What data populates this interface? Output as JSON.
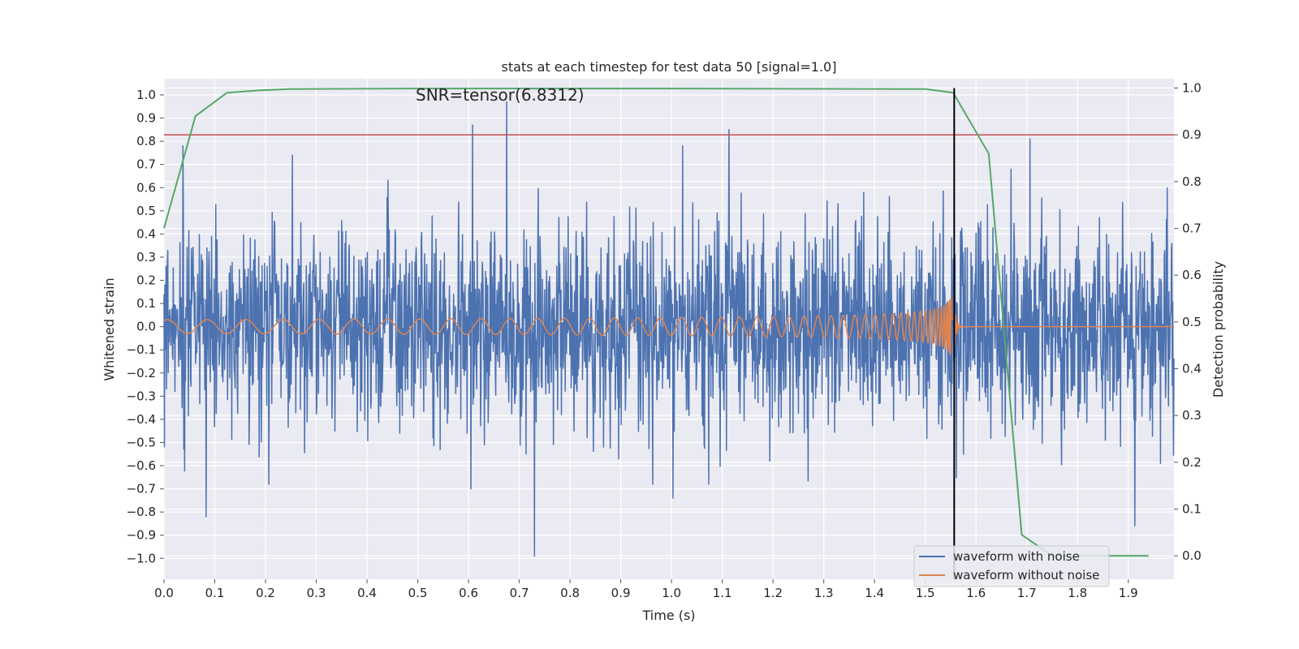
{
  "chart_data": {
    "type": "line",
    "title": "stats at each timestep for test data 50 [signal=1.0]",
    "xlabel": "Time (s)",
    "ylabel": "Whitened strain",
    "y2label": "Detection probability",
    "annotation": "SNR=tensor(6.8312)",
    "xlim": [
      0.0,
      1.99
    ],
    "ylim": [
      -1.09,
      1.07
    ],
    "y2lim": [
      -0.05,
      1.02
    ],
    "grid": true,
    "legend_position": "lower right",
    "x_ticks": [
      "0.0",
      "0.1",
      "0.2",
      "0.3",
      "0.4",
      "0.5",
      "0.6",
      "0.7",
      "0.8",
      "0.9",
      "1.0",
      "1.1",
      "1.2",
      "1.3",
      "1.4",
      "1.5",
      "1.6",
      "1.7",
      "1.8",
      "1.9"
    ],
    "y_ticks": [
      "1.0",
      "0.9",
      "0.8",
      "0.7",
      "0.6",
      "0.5",
      "0.4",
      "0.3",
      "0.2",
      "0.1",
      "0.0",
      "−0.1",
      "−0.2",
      "−0.3",
      "−0.4",
      "−0.5",
      "−0.6",
      "−0.7",
      "−0.8",
      "−0.9",
      "−1.0"
    ],
    "y2_ticks": [
      "1.0",
      "0.9",
      "0.8",
      "0.7",
      "0.6",
      "0.5",
      "0.4",
      "0.3",
      "0.2",
      "0.1",
      "0.0"
    ],
    "series": [
      {
        "name": "waveform with noise",
        "color": "#4c72b0",
        "axis": "left",
        "kind": "noise",
        "x_range": [
          0.0,
          1.99
        ],
        "amplitude_typical": 0.35,
        "peaks": [
          {
            "x": 0.037,
            "y": 0.78
          },
          {
            "x": 0.083,
            "y": -0.82
          },
          {
            "x": 0.253,
            "y": 0.74
          },
          {
            "x": 0.605,
            "y": -0.7
          },
          {
            "x": 0.608,
            "y": 0.87
          },
          {
            "x": 0.675,
            "y": 0.97
          },
          {
            "x": 0.73,
            "y": -0.99
          },
          {
            "x": 1.003,
            "y": -0.74
          },
          {
            "x": 1.022,
            "y": 0.78
          },
          {
            "x": 1.113,
            "y": 0.85
          },
          {
            "x": 1.706,
            "y": 0.81
          },
          {
            "x": 1.913,
            "y": -0.86
          }
        ]
      },
      {
        "name": "waveform without noise",
        "color": "#dd8452",
        "axis": "left",
        "kind": "chirp",
        "x_range": [
          0.0,
          1.99
        ],
        "merger_x": 1.555,
        "amplitude_start": 0.03,
        "amplitude_peak": 0.18
      },
      {
        "name": "detection probability",
        "color": "#55a868",
        "axis": "right",
        "x": [
          0.0,
          0.062,
          0.124,
          0.187,
          0.25,
          0.5,
          1.0,
          1.5,
          1.555,
          1.625,
          1.69,
          1.75,
          1.94
        ],
        "y": [
          0.7,
          0.94,
          0.99,
          0.995,
          0.998,
          0.999,
          0.999,
          0.998,
          0.99,
          0.86,
          0.045,
          0.0,
          0.0
        ]
      }
    ],
    "threshold": {
      "color": "#c44e52",
      "axis": "right",
      "y": 0.9
    },
    "vertical_marker": {
      "color": "#000000",
      "x": 1.557,
      "y_top": 1.0
    },
    "legend": [
      {
        "label": "waveform with noise",
        "color": "#4c72b0"
      },
      {
        "label": "waveform without noise",
        "color": "#dd8452"
      }
    ]
  }
}
